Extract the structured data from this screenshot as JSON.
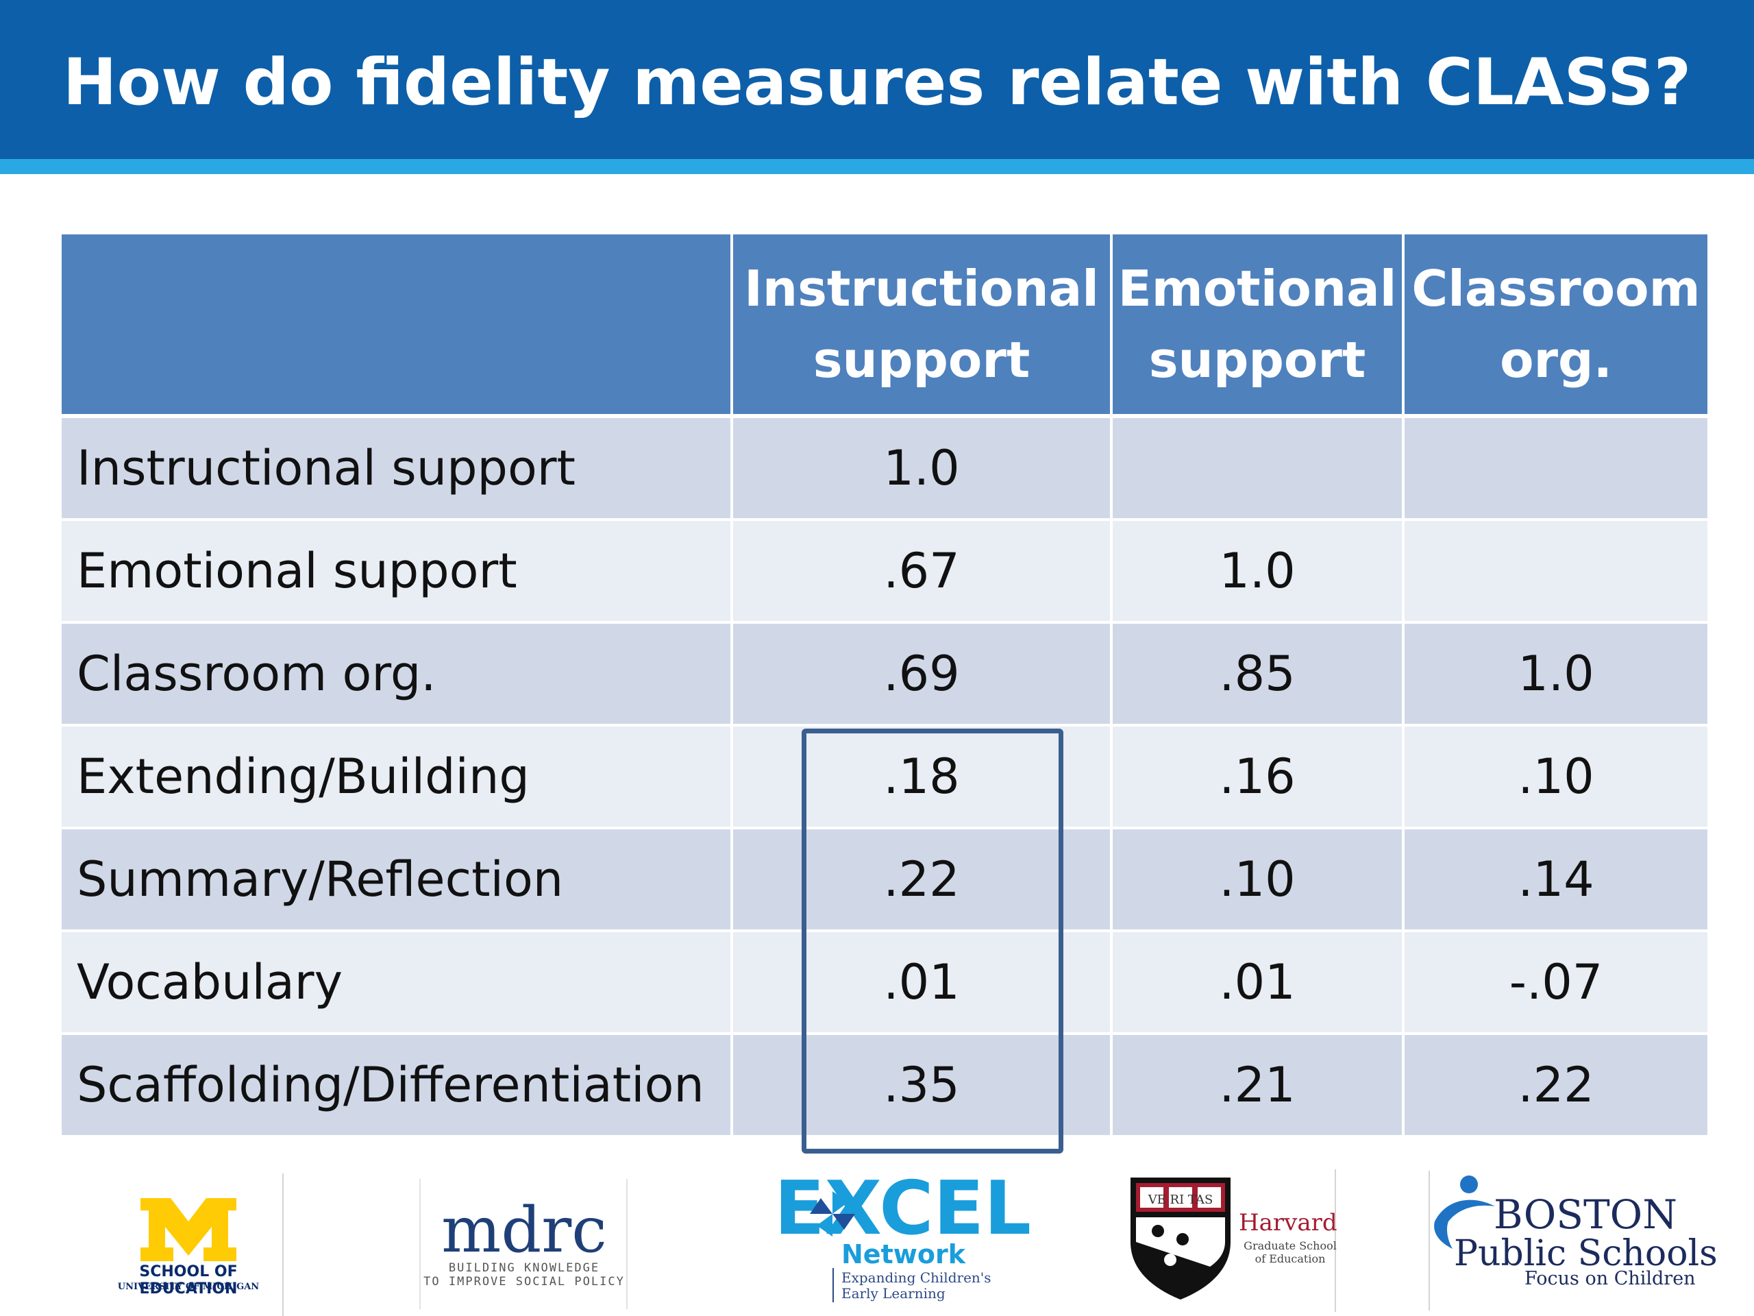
{
  "slide": {
    "title": "How do fidelity measures relate with CLASS?"
  },
  "table": {
    "columns": [
      {
        "line1": "Instructional",
        "line2": "support"
      },
      {
        "line1": "Emotional",
        "line2": "support"
      },
      {
        "line1": "Classroom",
        "line2": "org."
      }
    ],
    "rows": [
      {
        "label": "Instructional support",
        "values": [
          "1.0",
          "",
          ""
        ]
      },
      {
        "label": "Emotional support",
        "values": [
          ".67",
          "1.0",
          ""
        ]
      },
      {
        "label": "Classroom org.",
        "values": [
          ".69",
          ".85",
          "1.0"
        ]
      },
      {
        "label": "Extending/Building",
        "values": [
          ".18",
          ".16",
          ".10"
        ]
      },
      {
        "label": "Summary/Reflection",
        "values": [
          ".22",
          ".10",
          ".14"
        ]
      },
      {
        "label": "Vocabulary",
        "values": [
          ".01",
          ".01",
          "-.07"
        ]
      },
      {
        "label": "Scaffolding/Differentiation",
        "values": [
          ".35",
          ".21",
          ".22"
        ]
      }
    ]
  },
  "logos": {
    "umich": {
      "line1": "SCHOOL OF EDUCATION",
      "line2": "UNIVERSITY OF MICHIGAN"
    },
    "mdrc": {
      "word": "mdrc",
      "tag_line1": "BUILDING KNOWLEDGE",
      "tag_line2": "TO IMPROVE SOCIAL POLICY"
    },
    "excel": {
      "word": "EXCEL",
      "network": "Network",
      "tag_line1": "Expanding Children's",
      "tag_line2": "Early Learning"
    },
    "harvard": {
      "shield_text": "VE RI TAS",
      "name": "Harvard",
      "sub_line1": "Graduate School",
      "sub_line2": "of Education"
    },
    "bps": {
      "line1": "BOSTON",
      "line2": "Public Schools",
      "tag": "Focus on Children"
    }
  },
  "colors": {
    "title_band": "#0d5fa9",
    "title_stripe": "#2aa8e4",
    "header_fill": "#4f81bd",
    "row_band_dark": "#d0d8e8",
    "row_band_light": "#e9edf4",
    "highlight_border": "#3a5f8f"
  }
}
